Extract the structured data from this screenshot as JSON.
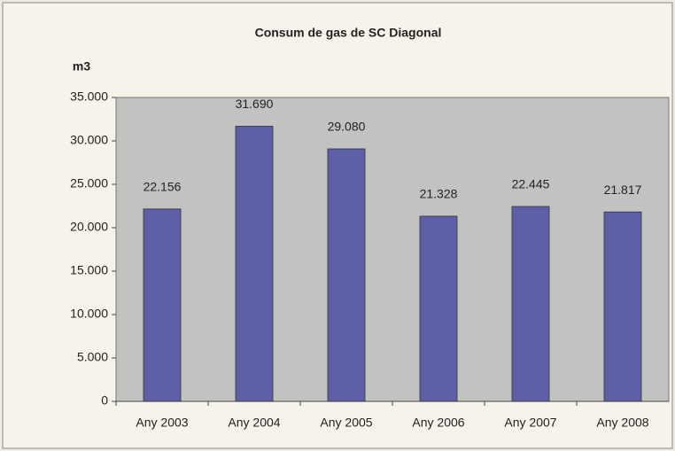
{
  "chart_data": {
    "type": "bar",
    "title": "Consum de gas de SC Diagonal",
    "y_label": "m3",
    "categories": [
      "Any 2003",
      "Any 2004",
      "Any 2005",
      "Any 2006",
      "Any 2007",
      "Any 2008"
    ],
    "values": [
      22156,
      31690,
      29080,
      21328,
      22445,
      21817
    ],
    "value_labels": [
      "22.156",
      "31.690",
      "29.080",
      "21.328",
      "22.445",
      "21.817"
    ],
    "color": "#5f5fa8",
    "plot_background": "#c2c2c0",
    "ylim": [
      0,
      35000
    ],
    "yticks": [
      0,
      {
        "value": 5000,
        "label": "5.000"
      },
      {
        "value": 10000,
        "label": "10.000"
      },
      {
        "value": 15000,
        "label": "15.000"
      },
      {
        "value": 20000,
        "label": "20.000"
      },
      {
        "value": 25000,
        "label": "25.000"
      },
      {
        "value": 30000,
        "label": "30.000"
      },
      {
        "value": 35000,
        "label": "35.000"
      }
    ]
  }
}
